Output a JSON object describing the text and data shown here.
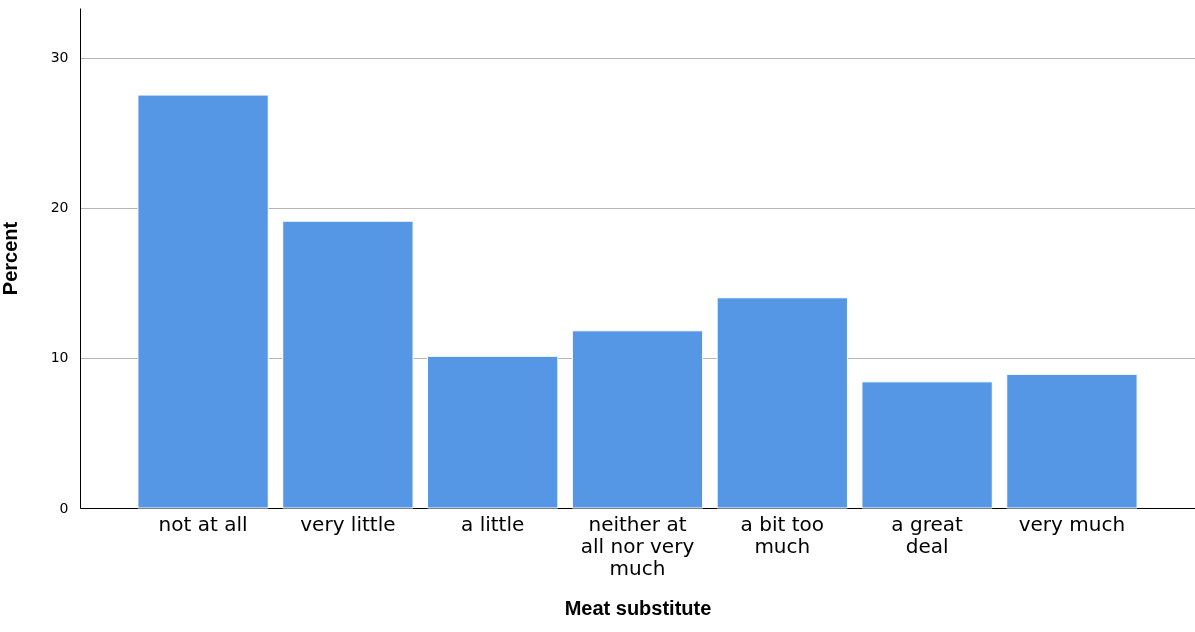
{
  "chart_data": {
    "type": "bar",
    "xlabel": "Meat substitute",
    "ylabel": "Percent",
    "categories": [
      "not at all",
      "very little",
      "a little",
      "neither at all nor very much",
      "a bit too much",
      "a great deal",
      "very much"
    ],
    "values": [
      27.5,
      19.1,
      10.1,
      11.8,
      14.0,
      8.4,
      8.9
    ],
    "color": "#5596e5",
    "ylim": [
      0,
      33.3
    ],
    "yticks": [
      0,
      10,
      20,
      30
    ],
    "grid": "y"
  }
}
